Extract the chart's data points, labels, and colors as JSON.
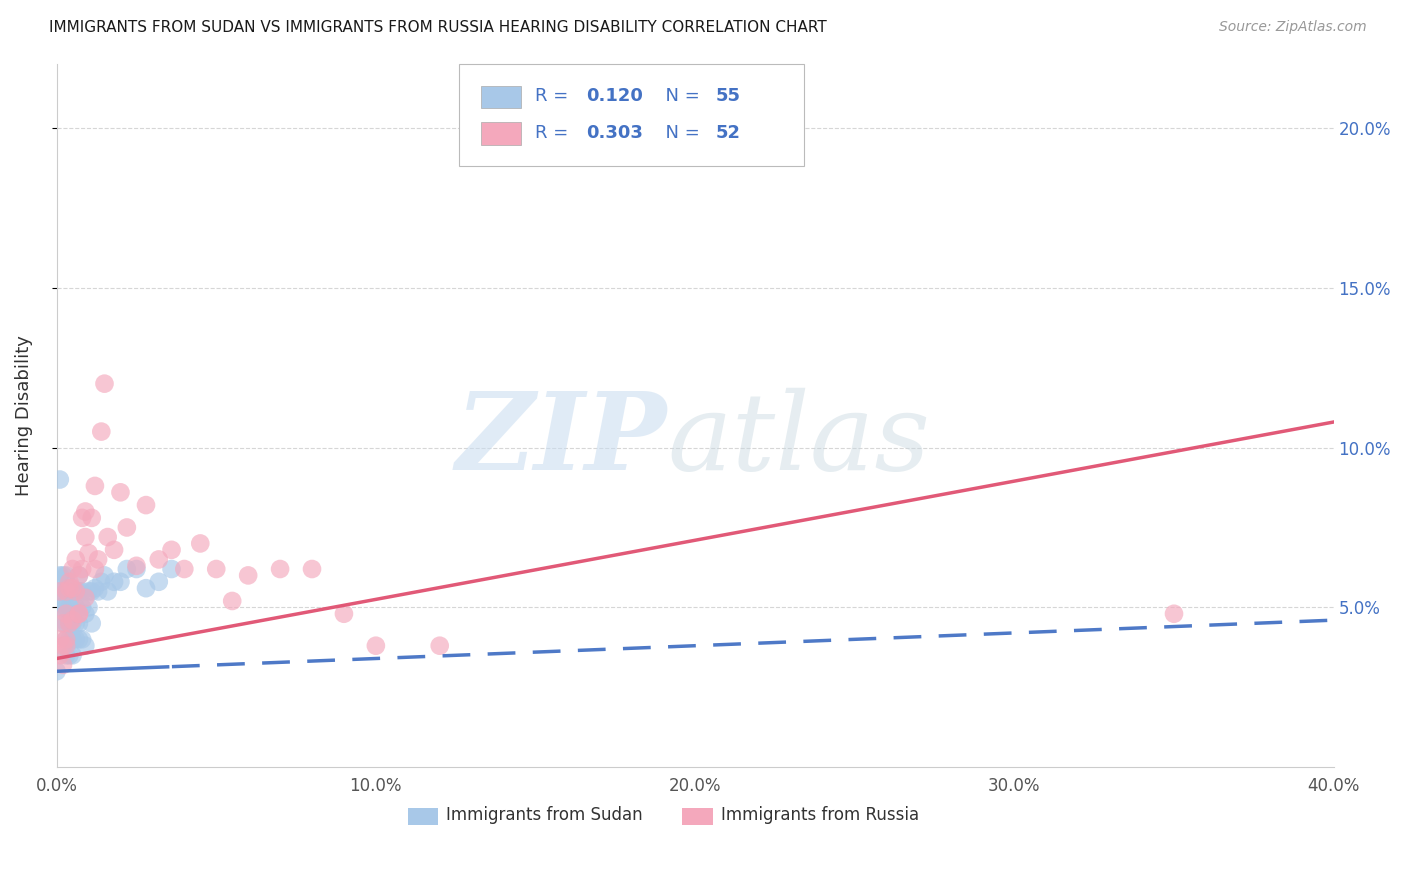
{
  "title": "IMMIGRANTS FROM SUDAN VS IMMIGRANTS FROM RUSSIA HEARING DISABILITY CORRELATION CHART",
  "source": "Source: ZipAtlas.com",
  "ylabel_label": "Hearing Disability",
  "sudan_R": 0.12,
  "sudan_N": 55,
  "russia_R": 0.303,
  "russia_N": 52,
  "sudan_color": "#A8C8E8",
  "russia_color": "#F4A8BC",
  "sudan_line_color": "#4472C4",
  "russia_line_color": "#E05070",
  "sudan_trend_x0": 0.0,
  "sudan_trend_y0": 0.03,
  "sudan_trend_x1": 0.4,
  "sudan_trend_y1": 0.046,
  "russia_trend_x0": 0.0,
  "russia_trend_y0": 0.034,
  "russia_trend_x1": 0.4,
  "russia_trend_y1": 0.108,
  "sudan_x": [
    0.001,
    0.001,
    0.001,
    0.002,
    0.002,
    0.002,
    0.002,
    0.003,
    0.003,
    0.003,
    0.003,
    0.003,
    0.003,
    0.004,
    0.004,
    0.004,
    0.004,
    0.004,
    0.005,
    0.005,
    0.005,
    0.005,
    0.005,
    0.005,
    0.006,
    0.006,
    0.006,
    0.006,
    0.007,
    0.007,
    0.007,
    0.007,
    0.008,
    0.008,
    0.008,
    0.009,
    0.009,
    0.01,
    0.01,
    0.011,
    0.011,
    0.012,
    0.013,
    0.014,
    0.015,
    0.016,
    0.018,
    0.02,
    0.022,
    0.025,
    0.028,
    0.032,
    0.036,
    0.001,
    0.0
  ],
  "sudan_y": [
    0.06,
    0.055,
    0.05,
    0.055,
    0.05,
    0.045,
    0.06,
    0.045,
    0.05,
    0.055,
    0.04,
    0.035,
    0.06,
    0.04,
    0.045,
    0.05,
    0.035,
    0.055,
    0.035,
    0.04,
    0.045,
    0.05,
    0.055,
    0.04,
    0.04,
    0.045,
    0.05,
    0.055,
    0.04,
    0.045,
    0.055,
    0.06,
    0.04,
    0.05,
    0.055,
    0.038,
    0.048,
    0.05,
    0.055,
    0.045,
    0.055,
    0.056,
    0.055,
    0.058,
    0.06,
    0.055,
    0.058,
    0.058,
    0.062,
    0.062,
    0.056,
    0.058,
    0.062,
    0.09,
    0.03
  ],
  "russia_x": [
    0.001,
    0.001,
    0.002,
    0.002,
    0.003,
    0.003,
    0.003,
    0.004,
    0.004,
    0.005,
    0.005,
    0.006,
    0.006,
    0.007,
    0.007,
    0.008,
    0.008,
    0.009,
    0.009,
    0.01,
    0.011,
    0.012,
    0.013,
    0.014,
    0.015,
    0.016,
    0.018,
    0.02,
    0.022,
    0.025,
    0.028,
    0.032,
    0.036,
    0.04,
    0.045,
    0.05,
    0.055,
    0.06,
    0.07,
    0.08,
    0.09,
    0.1,
    0.12,
    0.001,
    0.002,
    0.003,
    0.004,
    0.005,
    0.007,
    0.009,
    0.012,
    0.35
  ],
  "russia_y": [
    0.035,
    0.04,
    0.045,
    0.038,
    0.055,
    0.04,
    0.048,
    0.058,
    0.045,
    0.062,
    0.046,
    0.055,
    0.065,
    0.06,
    0.048,
    0.078,
    0.062,
    0.072,
    0.053,
    0.067,
    0.078,
    0.088,
    0.065,
    0.105,
    0.12,
    0.072,
    0.068,
    0.086,
    0.075,
    0.063,
    0.082,
    0.065,
    0.068,
    0.062,
    0.07,
    0.062,
    0.052,
    0.06,
    0.062,
    0.062,
    0.048,
    0.038,
    0.038,
    0.055,
    0.032,
    0.038,
    0.056,
    0.056,
    0.048,
    0.08,
    0.062,
    0.048
  ],
  "xlim": [
    0.0,
    0.4
  ],
  "ylim": [
    0.0,
    0.22
  ],
  "figsize": [
    14.06,
    8.92
  ],
  "dpi": 100,
  "legend_text_color": "#4472C4",
  "watermark_zip_color": "#C8DCF0",
  "watermark_atlas_color": "#C8D8E0"
}
